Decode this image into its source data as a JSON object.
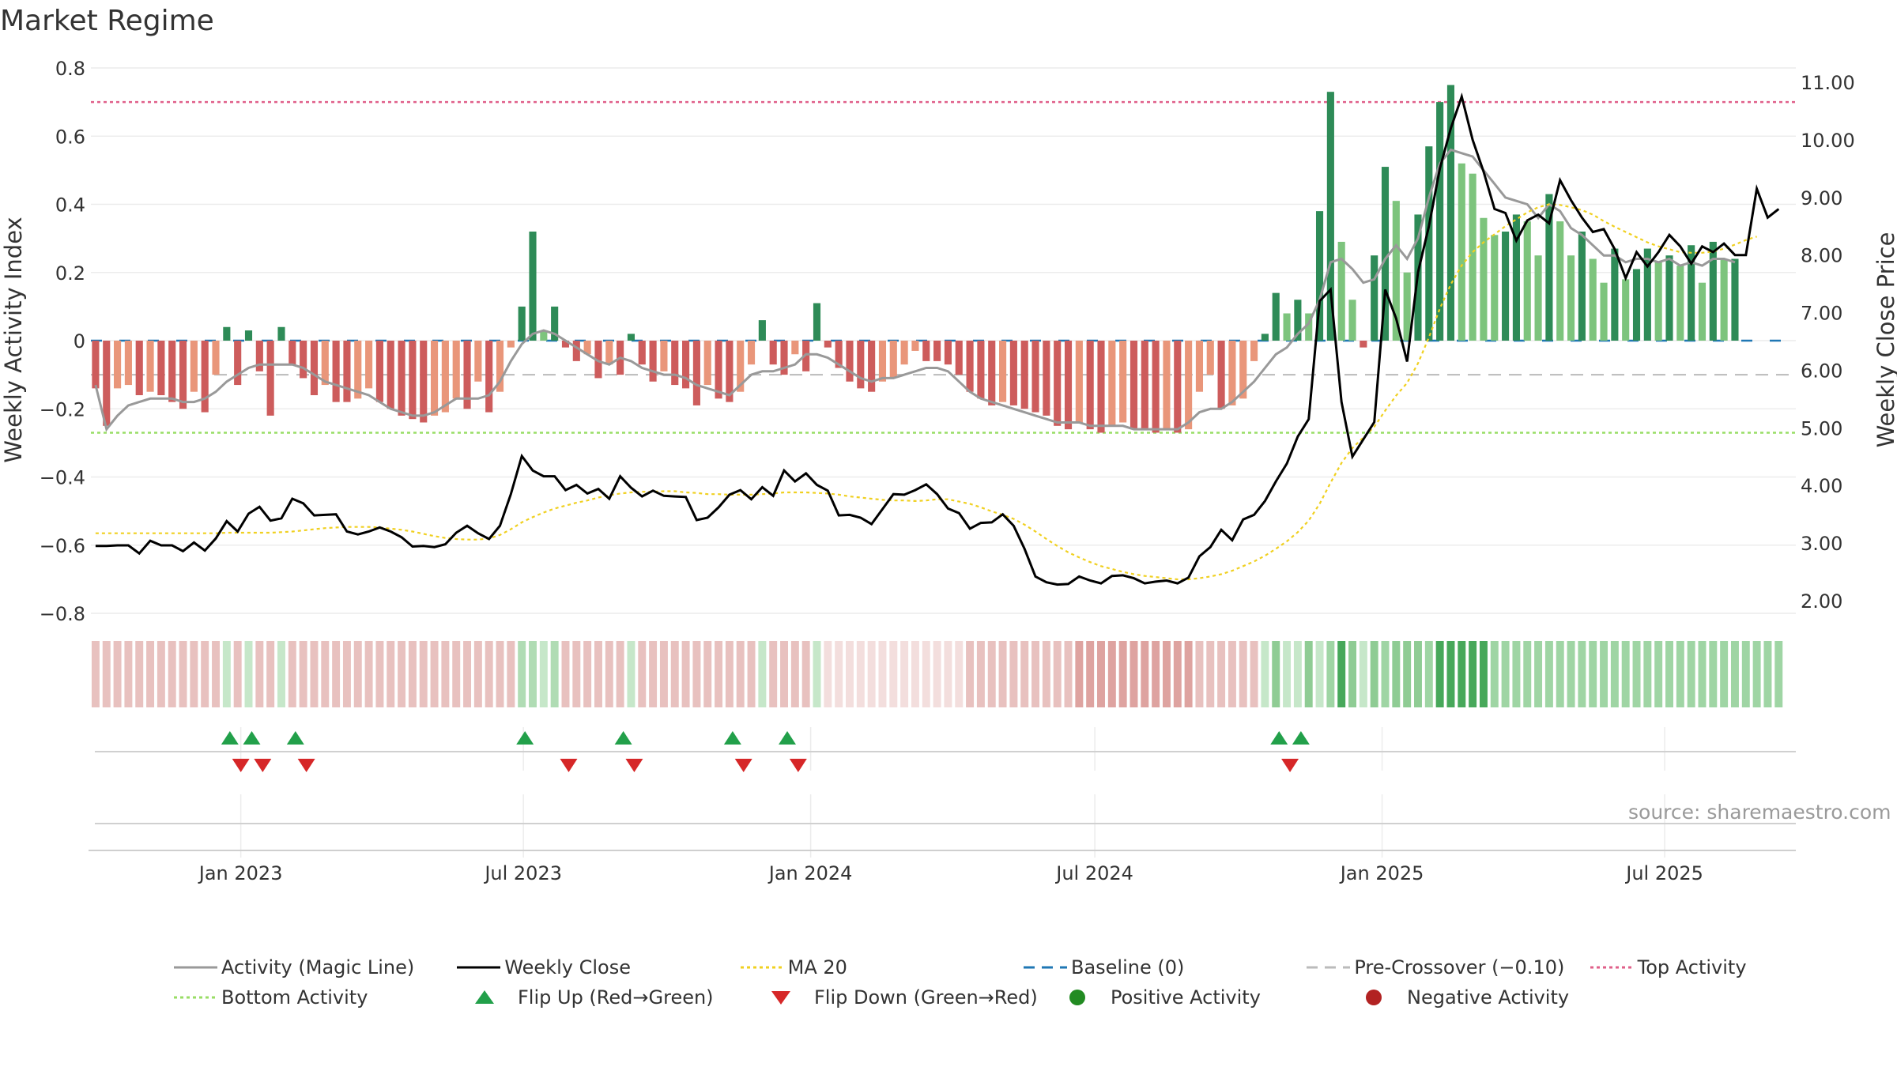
{
  "title": "Market Regime",
  "source": "source: sharemaestro.com",
  "colors": {
    "bar_strong_green": "#2e8b57",
    "bar_light_green": "#7dc47d",
    "bar_strong_red": "#cd5c5c",
    "bar_light_red": "#e9967a",
    "activity_line": "#999999",
    "close_line": "#000000",
    "ma_line": "#f0d020",
    "baseline": "#1f77b4",
    "pre_crossover": "#bbbbbb",
    "top_activity": "#e0608a",
    "bottom_activity": "#99dd66",
    "flip_up": "#22a04a",
    "flip_down": "#d62728",
    "positive": "#228b22",
    "negative": "#b22222"
  },
  "legend": [
    {
      "key": "activity",
      "label": "Activity (Magic Line)"
    },
    {
      "key": "close",
      "label": "Weekly Close"
    },
    {
      "key": "ma",
      "label": "MA 20"
    },
    {
      "key": "baseline",
      "label": "Baseline (0)"
    },
    {
      "key": "precross",
      "label": "Pre-Crossover (−0.10)"
    },
    {
      "key": "top",
      "label": "Top Activity"
    },
    {
      "key": "bottom",
      "label": "Bottom Activity"
    },
    {
      "key": "flipup",
      "label": "Flip Up (Red→Green)"
    },
    {
      "key": "flipdown",
      "label": "Flip Down (Green→Red)"
    },
    {
      "key": "positive",
      "label": "Positive Activity"
    },
    {
      "key": "negative",
      "label": "Negative Activity"
    }
  ],
  "chart_data": {
    "type": "bar",
    "title": "Market Regime",
    "ylabel": "Weekly Activity Index",
    "y2label": "Weekly Close Price",
    "ylim": [
      -0.82,
      0.82
    ],
    "y2lim": [
      1.55,
      11.3
    ],
    "yticks": [
      "0.8",
      "0.6",
      "0.4",
      "0.2",
      "0",
      "−0.2",
      "−0.4",
      "−0.6",
      "−0.8"
    ],
    "y2ticks": [
      "11.00",
      "10.00",
      "9.00",
      "8.00",
      "7.00",
      "6.00",
      "5.00",
      "4.00",
      "3.00",
      "2.00"
    ],
    "xlim": [
      "2022-09-27",
      "2025-09-23"
    ],
    "xticks": [
      {
        "date": "2023-01-01",
        "label": "Jan 2023"
      },
      {
        "date": "2023-07-01",
        "label": "Jul 2023"
      },
      {
        "date": "2024-01-01",
        "label": "Jan 2024"
      },
      {
        "date": "2024-07-01",
        "label": "Jul 2024"
      },
      {
        "date": "2025-01-01",
        "label": "Jan 2025"
      },
      {
        "date": "2025-07-01",
        "label": "Jul 2025"
      }
    ],
    "grid": true,
    "top_activity": 0.7,
    "bottom_activity": -0.27,
    "pre_crossover": -0.1,
    "baseline": 0,
    "x_start": "2022-09-30",
    "x_step_days": 7,
    "activity": [
      -0.14,
      -0.25,
      -0.14,
      -0.13,
      -0.16,
      -0.15,
      -0.16,
      -0.18,
      -0.2,
      -0.15,
      -0.21,
      -0.1,
      0.04,
      -0.13,
      0.03,
      -0.09,
      -0.22,
      0.04,
      -0.07,
      -0.11,
      -0.16,
      -0.13,
      -0.18,
      -0.18,
      -0.17,
      -0.14,
      -0.18,
      -0.2,
      -0.22,
      -0.23,
      -0.24,
      -0.22,
      -0.21,
      -0.17,
      -0.2,
      -0.12,
      -0.21,
      -0.15,
      -0.02,
      0.1,
      0.32,
      0.03,
      0.1,
      -0.02,
      -0.06,
      -0.04,
      -0.11,
      -0.07,
      -0.1,
      0.02,
      -0.07,
      -0.12,
      -0.09,
      -0.13,
      -0.14,
      -0.19,
      -0.13,
      -0.17,
      -0.18,
      -0.15,
      -0.07,
      0.06,
      -0.07,
      -0.1,
      -0.04,
      -0.09,
      0.11,
      -0.02,
      -0.08,
      -0.12,
      -0.14,
      -0.15,
      -0.12,
      -0.11,
      -0.07,
      -0.03,
      -0.06,
      -0.06,
      -0.07,
      -0.1,
      -0.15,
      -0.17,
      -0.19,
      -0.18,
      -0.19,
      -0.2,
      -0.21,
      -0.22,
      -0.25,
      -0.26,
      -0.24,
      -0.26,
      -0.27,
      -0.25,
      -0.24,
      -0.26,
      -0.26,
      -0.27,
      -0.26,
      -0.27,
      -0.26,
      -0.15,
      -0.1,
      -0.2,
      -0.19,
      -0.17,
      -0.06,
      0.02,
      0.14,
      0.08,
      0.12,
      0.08,
      0.38,
      0.73,
      0.29,
      0.12,
      -0.02,
      0.25,
      0.51,
      0.41,
      0.2,
      0.37,
      0.57,
      0.7,
      0.75,
      0.52,
      0.49,
      0.36,
      0.31,
      0.32,
      0.37,
      0.35,
      0.25,
      0.43,
      0.35,
      0.25,
      0.32,
      0.24,
      0.17,
      0.27,
      0.18,
      0.21,
      0.27,
      0.23,
      0.25,
      0.22,
      0.28,
      0.17,
      0.29,
      0.24,
      0.24
    ],
    "activity_line": [
      -0.13,
      -0.26,
      -0.22,
      -0.19,
      -0.18,
      -0.17,
      -0.17,
      -0.17,
      -0.18,
      -0.18,
      -0.17,
      -0.15,
      -0.12,
      -0.1,
      -0.08,
      -0.07,
      -0.07,
      -0.07,
      -0.07,
      -0.08,
      -0.1,
      -0.12,
      -0.13,
      -0.14,
      -0.15,
      -0.16,
      -0.18,
      -0.2,
      -0.21,
      -0.22,
      -0.22,
      -0.21,
      -0.19,
      -0.17,
      -0.17,
      -0.17,
      -0.16,
      -0.12,
      -0.06,
      -0.01,
      0.02,
      0.03,
      0.02,
      0.0,
      -0.02,
      -0.04,
      -0.06,
      -0.07,
      -0.05,
      -0.06,
      -0.08,
      -0.09,
      -0.1,
      -0.1,
      -0.11,
      -0.13,
      -0.14,
      -0.15,
      -0.16,
      -0.13,
      -0.1,
      -0.09,
      -0.09,
      -0.08,
      -0.07,
      -0.04,
      -0.04,
      -0.05,
      -0.07,
      -0.09,
      -0.11,
      -0.12,
      -0.11,
      -0.11,
      -0.1,
      -0.09,
      -0.08,
      -0.08,
      -0.09,
      -0.12,
      -0.15,
      -0.17,
      -0.18,
      -0.19,
      -0.2,
      -0.21,
      -0.22,
      -0.23,
      -0.24,
      -0.24,
      -0.24,
      -0.25,
      -0.25,
      -0.25,
      -0.25,
      -0.26,
      -0.26,
      -0.26,
      -0.26,
      -0.26,
      -0.24,
      -0.21,
      -0.2,
      -0.2,
      -0.18,
      -0.15,
      -0.12,
      -0.08,
      -0.04,
      -0.02,
      0.02,
      0.05,
      0.12,
      0.23,
      0.24,
      0.21,
      0.17,
      0.18,
      0.24,
      0.28,
      0.24,
      0.3,
      0.42,
      0.52,
      0.56,
      0.55,
      0.54,
      0.5,
      0.46,
      0.42,
      0.41,
      0.4,
      0.36,
      0.4,
      0.38,
      0.33,
      0.31,
      0.28,
      0.25,
      0.25,
      0.23,
      0.24,
      0.24,
      0.23,
      0.24,
      0.22,
      0.23,
      0.22,
      0.24,
      0.24,
      0.23
    ],
    "close": [
      2.95,
      2.95,
      2.96,
      2.96,
      2.82,
      3.04,
      2.96,
      2.96,
      2.86,
      3.01,
      2.87,
      3.08,
      3.38,
      3.2,
      3.51,
      3.63,
      3.39,
      3.43,
      3.77,
      3.69,
      3.48,
      3.49,
      3.5,
      3.2,
      3.15,
      3.2,
      3.27,
      3.2,
      3.1,
      2.94,
      2.95,
      2.93,
      2.98,
      3.18,
      3.3,
      3.17,
      3.07,
      3.3,
      3.85,
      4.51,
      4.26,
      4.16,
      4.16,
      3.92,
      4.01,
      3.86,
      3.94,
      3.77,
      4.16,
      3.96,
      3.81,
      3.91,
      3.82,
      3.81,
      3.8,
      3.4,
      3.44,
      3.62,
      3.84,
      3.92,
      3.76,
      3.97,
      3.82,
      4.26,
      4.07,
      4.21,
      4.01,
      3.91,
      3.48,
      3.49,
      3.44,
      3.33,
      3.59,
      3.85,
      3.84,
      3.92,
      4.02,
      3.85,
      3.6,
      3.52,
      3.25,
      3.35,
      3.36,
      3.5,
      3.3,
      2.9,
      2.42,
      2.32,
      2.28,
      2.29,
      2.42,
      2.35,
      2.3,
      2.43,
      2.44,
      2.39,
      2.3,
      2.33,
      2.35,
      2.3,
      2.4,
      2.77,
      2.93,
      3.23,
      3.05,
      3.41,
      3.49,
      3.73,
      4.07,
      4.38,
      4.85,
      5.15,
      7.2,
      7.4,
      5.45,
      4.5,
      4.8,
      5.1,
      7.4,
      6.9,
      6.15,
      7.7,
      8.5,
      9.5,
      10.2,
      10.75,
      10.0,
      9.45,
      8.8,
      8.73,
      8.25,
      8.6,
      8.7,
      8.55,
      9.3,
      8.95,
      8.65,
      8.4,
      8.45,
      8.1,
      7.6,
      8.05,
      7.8,
      8.05,
      8.35,
      8.15,
      7.85,
      8.15,
      8.05,
      8.2,
      8.0,
      8.0,
      9.15,
      8.65,
      8.8
    ],
    "ma20": [
      3.17,
      3.17,
      3.17,
      3.17,
      3.17,
      3.17,
      3.17,
      3.17,
      3.17,
      3.17,
      3.17,
      3.17,
      3.18,
      3.18,
      3.18,
      3.18,
      3.18,
      3.19,
      3.2,
      3.22,
      3.24,
      3.26,
      3.27,
      3.28,
      3.28,
      3.28,
      3.27,
      3.25,
      3.23,
      3.2,
      3.16,
      3.12,
      3.09,
      3.07,
      3.06,
      3.06,
      3.08,
      3.14,
      3.24,
      3.36,
      3.45,
      3.53,
      3.6,
      3.65,
      3.7,
      3.74,
      3.79,
      3.83,
      3.86,
      3.88,
      3.89,
      3.89,
      3.9,
      3.9,
      3.88,
      3.87,
      3.85,
      3.85,
      3.84,
      3.84,
      3.84,
      3.85,
      3.86,
      3.88,
      3.88,
      3.88,
      3.87,
      3.86,
      3.84,
      3.81,
      3.79,
      3.77,
      3.75,
      3.74,
      3.74,
      3.73,
      3.74,
      3.76,
      3.76,
      3.72,
      3.68,
      3.62,
      3.55,
      3.49,
      3.42,
      3.32,
      3.2,
      3.07,
      2.95,
      2.84,
      2.75,
      2.67,
      2.6,
      2.55,
      2.5,
      2.46,
      2.43,
      2.41,
      2.39,
      2.37,
      2.37,
      2.39,
      2.42,
      2.46,
      2.52,
      2.6,
      2.68,
      2.78,
      2.9,
      3.03,
      3.19,
      3.39,
      3.68,
      4.05,
      4.39,
      4.65,
      4.83,
      5.02,
      5.3,
      5.56,
      5.78,
      6.12,
      6.57,
      7.07,
      7.49,
      7.82,
      8.05,
      8.22,
      8.36,
      8.5,
      8.62,
      8.74,
      8.83,
      8.88,
      8.87,
      8.83,
      8.78,
      8.7,
      8.59,
      8.49,
      8.4,
      8.31,
      8.22,
      8.15,
      8.1,
      8.05,
      8.04,
      8.04,
      8.06,
      8.11,
      8.18,
      8.26,
      8.32
    ],
    "ribbon": [
      1,
      1,
      1,
      1,
      1,
      1,
      1,
      1,
      1,
      1,
      1,
      1,
      -2,
      1,
      -2,
      1,
      1,
      -2,
      1,
      1,
      1,
      1,
      1,
      1,
      1,
      1,
      1,
      1,
      1,
      1,
      1,
      1,
      1,
      1,
      1,
      1,
      1,
      1,
      1,
      -1,
      -1,
      -2,
      -1,
      1,
      1,
      1,
      1,
      1,
      1,
      -2,
      1,
      1,
      1,
      1,
      1,
      1,
      1,
      1,
      1,
      1,
      1,
      -2,
      1,
      1,
      1,
      1,
      -2,
      0,
      0,
      0,
      0,
      0,
      0,
      0,
      0,
      0,
      0,
      0,
      0,
      0,
      1,
      1,
      1,
      1,
      1,
      1,
      1,
      1,
      1,
      1,
      2,
      2,
      2,
      2,
      2,
      2,
      2,
      2,
      2,
      2,
      2,
      1,
      1,
      1,
      1,
      1,
      1,
      -2,
      -3,
      -2,
      -2,
      -3,
      -2,
      -4,
      -5,
      -3,
      -2,
      -3,
      -4,
      -3,
      -3,
      -3,
      -4,
      -5,
      -5,
      -5,
      -5,
      -5,
      -4,
      -4,
      -4,
      -4,
      -4,
      -4,
      -4,
      -4,
      -4,
      -4,
      -4,
      -4,
      -4,
      -4,
      -4,
      -4,
      -4,
      -4,
      -4,
      -4,
      -4,
      -4,
      -4,
      -4,
      -4,
      -4,
      -4
    ],
    "flip_up_weeks": [
      12,
      14,
      18,
      39,
      48,
      58,
      63,
      108,
      110
    ],
    "flip_down_weeks": [
      13,
      15,
      19,
      43,
      49,
      59,
      64,
      109
    ]
  }
}
